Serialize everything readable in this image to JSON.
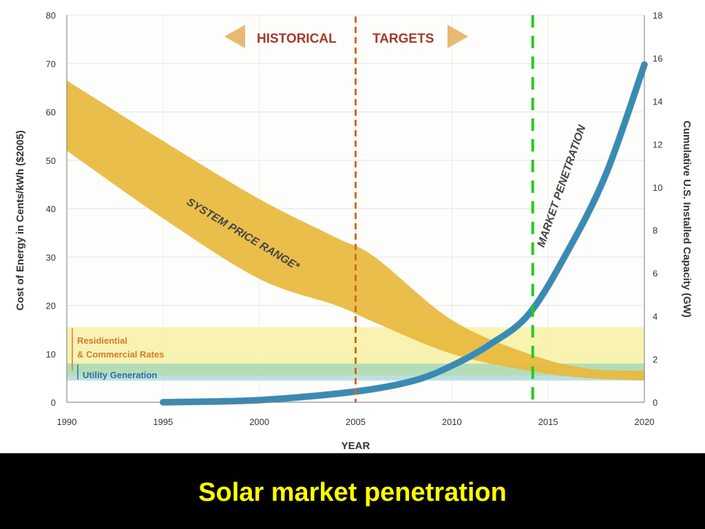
{
  "caption": "Solar market penetration",
  "chart_data": {
    "type": "area",
    "x_range": [
      1990,
      2020
    ],
    "y_left_range": [
      0,
      80
    ],
    "y_right_range": [
      0,
      18
    ],
    "x_ticks": [
      1990,
      1995,
      2000,
      2005,
      2010,
      2015,
      2020
    ],
    "y_left_ticks": [
      0,
      10,
      20,
      30,
      40,
      50,
      60,
      70,
      80
    ],
    "y_right_ticks": [
      0,
      2,
      4,
      6,
      8,
      10,
      12,
      14,
      16,
      18
    ],
    "xlabel": "YEAR",
    "ylabel_left": "Cost of Energy in Cents/kWh ($2005)",
    "ylabel_right": "Cumulative U.S. Installed Capacity (GW)",
    "grid": true,
    "header_left": "HISTORICAL",
    "header_right": "TARGETS",
    "divider_year": 2005,
    "marker_year": 2014.2,
    "system_price_range": {
      "label": "SYSTEM PRICE RANGE*",
      "color": "#e8b93c",
      "x": [
        1990,
        1995,
        2000,
        2004,
        2006,
        2010,
        2014,
        2017,
        2020
      ],
      "upper": [
        66.5,
        54,
        42,
        34,
        30,
        17,
        10,
        7,
        6.5
      ],
      "lower": [
        52,
        38,
        25.5,
        20,
        16.5,
        10,
        6.5,
        5,
        4.5
      ]
    },
    "bands": [
      {
        "label_line1": "Residiential",
        "label_line2": "& Commercial Rates",
        "low": 4.5,
        "high": 15.5,
        "color": "#f7f2a8",
        "text_color": "#d47a2a"
      },
      {
        "label_line1": "Utility Generation",
        "label_line2": "",
        "low": 4.5,
        "high": 8,
        "color": "#a8d8b8",
        "text_color": "#2a6f9e"
      }
    ],
    "market_penetration": {
      "label": "MARKET PENETRATION",
      "axis": "right",
      "color": "#2f86ad",
      "x": [
        1995,
        2000,
        2005,
        2008,
        2010,
        2012,
        2014,
        2016,
        2018,
        2020
      ],
      "y": [
        0,
        0.1,
        0.5,
        1,
        1.7,
        2.7,
        4.1,
        7,
        10.6,
        15.7
      ]
    }
  }
}
